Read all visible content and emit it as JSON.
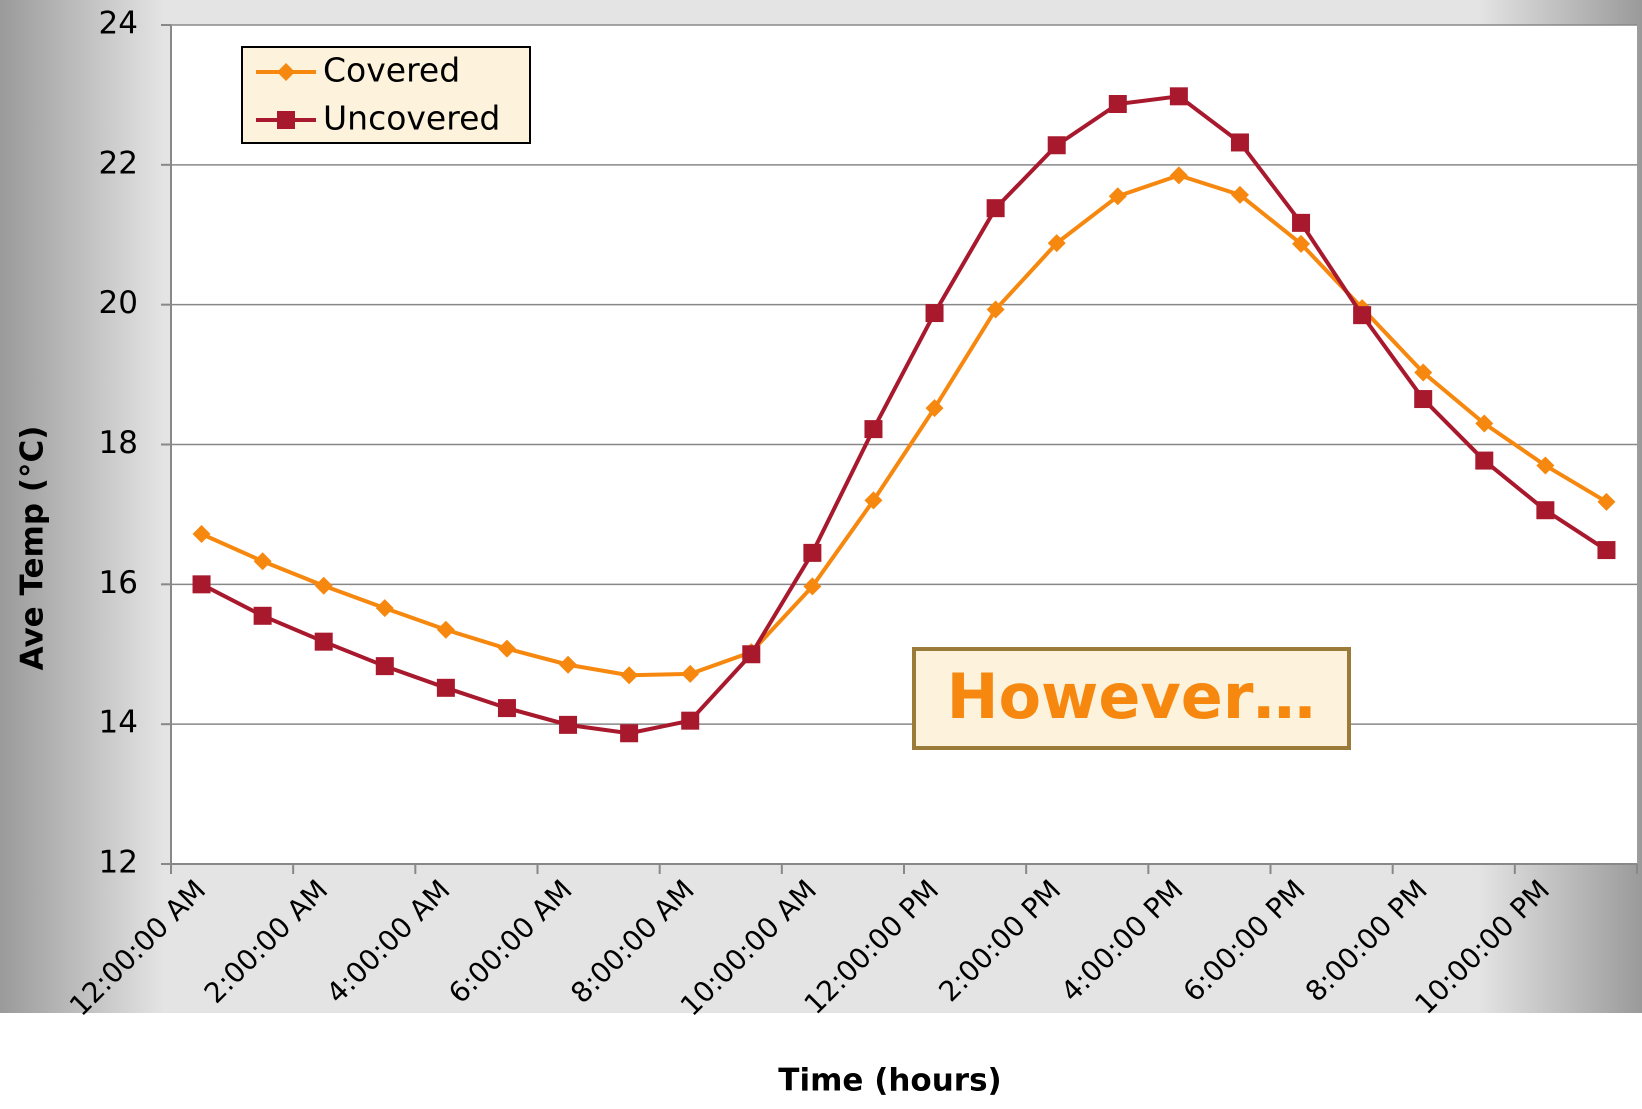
{
  "chart_data": {
    "type": "line",
    "x_label": "Time (hours)",
    "y_label": "Ave Temp (°C)",
    "categories": [
      "12:00:00 AM",
      null,
      "2:00:00 AM",
      null,
      "4:00:00 AM",
      null,
      "6:00:00 AM",
      null,
      "8:00:00 AM",
      null,
      "10:00:00 AM",
      null,
      "12:00:00 PM",
      null,
      "2:00:00 PM",
      null,
      "4:00:00 PM",
      null,
      "6:00:00 PM",
      null,
      "8:00:00 PM",
      null,
      "10:00:00 PM",
      null
    ],
    "series": [
      {
        "name": "Covered",
        "color": "#f7880f",
        "marker": "diamond",
        "values": [
          16.72,
          16.33,
          15.98,
          15.66,
          15.35,
          15.08,
          14.85,
          14.7,
          14.72,
          15.03,
          15.97,
          17.2,
          18.52,
          19.93,
          20.88,
          21.55,
          21.85,
          21.57,
          20.87,
          19.95,
          19.03,
          18.3,
          17.7,
          17.18
        ]
      },
      {
        "name": "Uncovered",
        "color": "#a8192e",
        "marker": "square",
        "values": [
          16.0,
          15.55,
          15.18,
          14.83,
          14.52,
          14.23,
          13.99,
          13.87,
          14.05,
          15.0,
          16.45,
          18.22,
          19.88,
          21.38,
          22.28,
          22.87,
          22.98,
          22.32,
          21.17,
          19.85,
          18.65,
          17.77,
          17.06,
          16.49
        ]
      }
    ],
    "ylim": [
      12,
      24
    ],
    "yticks": [
      12,
      14,
      16,
      18,
      20,
      22,
      24
    ],
    "grid": true,
    "legend": "upper left",
    "annotation": "However…"
  }
}
